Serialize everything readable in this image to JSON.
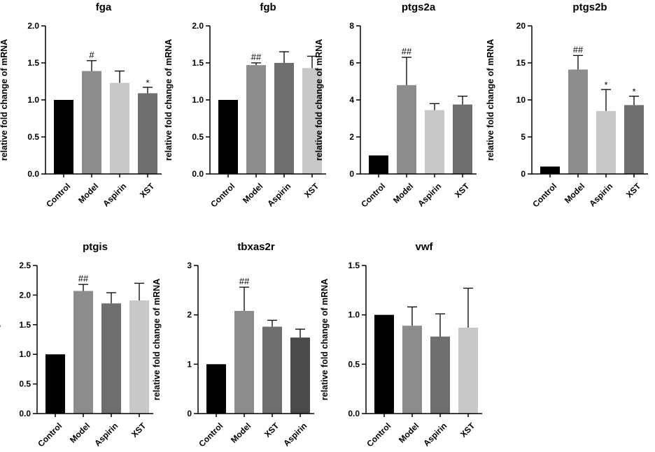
{
  "chart_data": [
    {
      "type": "bar",
      "title": "fga",
      "ylabel": "relative fold change of mRNA",
      "xlabel": "",
      "ylim": [
        0,
        2.0
      ],
      "yticks": [
        "0.0",
        "0.5",
        "1.0",
        "1.5",
        "2.0"
      ],
      "categories": [
        "Control",
        "Model",
        "Aspirin",
        "XST"
      ],
      "values": [
        1.0,
        1.39,
        1.23,
        1.09
      ],
      "errors": [
        0,
        0.14,
        0.16,
        0.08
      ],
      "colors": [
        "#000000",
        "#8c8c8c",
        "#c8c8c8",
        "#6e6e6e"
      ],
      "annotations": [
        "",
        "#",
        "",
        "*"
      ]
    },
    {
      "type": "bar",
      "title": "fgb",
      "ylabel": "relative fold change of mRNA",
      "xlabel": "",
      "ylim": [
        0,
        2.0
      ],
      "yticks": [
        "0.0",
        "0.5",
        "1.0",
        "1.5",
        "2.0"
      ],
      "categories": [
        "Control",
        "Model",
        "Aspirin",
        "XST"
      ],
      "values": [
        1.0,
        1.47,
        1.5,
        1.43
      ],
      "errors": [
        0,
        0.03,
        0.15,
        0.16
      ],
      "colors": [
        "#000000",
        "#8c8c8c",
        "#6e6e6e",
        "#c8c8c8"
      ],
      "annotations": [
        "",
        "##",
        "",
        ""
      ]
    },
    {
      "type": "bar",
      "title": "ptgs2a",
      "ylabel": "relative fold change of mRNA",
      "xlabel": "",
      "ylim": [
        0,
        8
      ],
      "yticks": [
        "0",
        "2",
        "4",
        "6",
        "8"
      ],
      "categories": [
        "Control",
        "Model",
        "Aspirin",
        "XST"
      ],
      "values": [
        1.0,
        4.8,
        3.45,
        3.75
      ],
      "errors": [
        0,
        1.5,
        0.35,
        0.45
      ],
      "colors": [
        "#000000",
        "#8c8c8c",
        "#c8c8c8",
        "#6e6e6e"
      ],
      "annotations": [
        "",
        "##",
        "",
        ""
      ]
    },
    {
      "type": "bar",
      "title": "ptgs2b",
      "ylabel": "relative fold change of mRNA",
      "xlabel": "",
      "ylim": [
        0,
        20
      ],
      "yticks": [
        "0",
        "5",
        "10",
        "15",
        "20"
      ],
      "categories": [
        "Control",
        "Model",
        "Aspirin",
        "XST"
      ],
      "values": [
        1.0,
        14.1,
        8.5,
        9.3
      ],
      "errors": [
        0,
        1.9,
        2.9,
        1.2
      ],
      "colors": [
        "#000000",
        "#8c8c8c",
        "#c8c8c8",
        "#6e6e6e"
      ],
      "annotations": [
        "",
        "##",
        "*",
        "*"
      ]
    },
    {
      "type": "bar",
      "title": "ptgis",
      "ylabel": "relative fold change of mRNA",
      "xlabel": "",
      "ylim": [
        0,
        2.5
      ],
      "yticks": [
        "0.0",
        "0.5",
        "1.0",
        "1.5",
        "2.0",
        "2.5"
      ],
      "categories": [
        "Control",
        "Model",
        "Aspirin",
        "XST"
      ],
      "values": [
        1.0,
        2.07,
        1.86,
        1.91
      ],
      "errors": [
        0,
        0.11,
        0.18,
        0.29
      ],
      "colors": [
        "#000000",
        "#8c8c8c",
        "#6e6e6e",
        "#c8c8c8"
      ],
      "annotations": [
        "",
        "##",
        "",
        ""
      ]
    },
    {
      "type": "bar",
      "title": "tbxas2r",
      "ylabel": "relative fold change of mRNA",
      "xlabel": "",
      "ylim": [
        0,
        3
      ],
      "yticks": [
        "0",
        "1",
        "2",
        "3"
      ],
      "categories": [
        "Control",
        "Model",
        "XST",
        "Aspirin"
      ],
      "values": [
        1.0,
        2.08,
        1.76,
        1.54
      ],
      "errors": [
        0,
        0.48,
        0.13,
        0.17
      ],
      "colors": [
        "#000000",
        "#8c8c8c",
        "#6e6e6e",
        "#4a4a4a"
      ],
      "annotations": [
        "",
        "##",
        "",
        ""
      ]
    },
    {
      "type": "bar",
      "title": "vwf",
      "ylabel": "relative fold change of mRNA",
      "xlabel": "",
      "ylim": [
        0,
        1.5
      ],
      "yticks": [
        "0.0",
        "0.5",
        "1.0",
        "1.5"
      ],
      "categories": [
        "Control",
        "Model",
        "Aspirin",
        "XST"
      ],
      "values": [
        1.0,
        0.89,
        0.78,
        0.87
      ],
      "errors": [
        0,
        0.19,
        0.23,
        0.4
      ],
      "colors": [
        "#000000",
        "#8c8c8c",
        "#6e6e6e",
        "#c8c8c8"
      ],
      "annotations": [
        "",
        "",
        "",
        ""
      ]
    }
  ]
}
